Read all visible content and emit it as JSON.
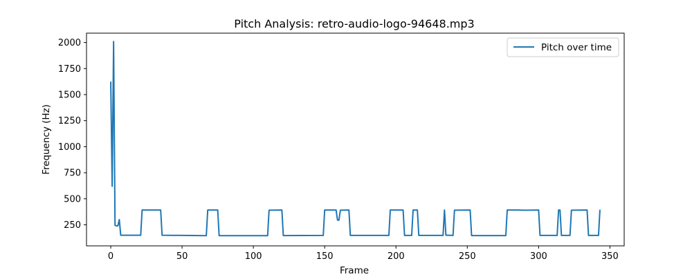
{
  "chart_data": {
    "type": "line",
    "title": "Pitch Analysis: retro-audio-logo-94648.mp3",
    "xlabel": "Frame",
    "ylabel": "Frequency (Hz)",
    "xlim": [
      -17,
      360
    ],
    "ylim": [
      48,
      2090
    ],
    "xticks": [
      0,
      50,
      100,
      150,
      200,
      250,
      300,
      350
    ],
    "yticks": [
      250,
      500,
      750,
      1000,
      1250,
      1500,
      1750,
      2000
    ],
    "xtick_labels": [
      "0",
      "50",
      "100",
      "150",
      "200",
      "250",
      "300",
      "350"
    ],
    "ytick_labels": [
      "250",
      "500",
      "750",
      "1000",
      "1250",
      "1500",
      "1750",
      "2000"
    ],
    "grid": false,
    "legend_position": "top-right",
    "series": [
      {
        "name": "Pitch over time",
        "color": "#1f77b4",
        "x": [
          0,
          1,
          2,
          3,
          4,
          5,
          6,
          7,
          21,
          22,
          35,
          36,
          67,
          68,
          75,
          76,
          110,
          111,
          120,
          121,
          149,
          150,
          158,
          159,
          160,
          161,
          167,
          168,
          195,
          196,
          205,
          206,
          211,
          212,
          215,
          216,
          233,
          234,
          235,
          236,
          240,
          241,
          252,
          253,
          277,
          278,
          285,
          290,
          300,
          301,
          313,
          314,
          315,
          316,
          322,
          323,
          334,
          335,
          342,
          343
        ],
        "values": [
          1625,
          620,
          2010,
          245,
          240,
          240,
          300,
          150,
          150,
          392,
          392,
          150,
          146,
          392,
          392,
          146,
          146,
          390,
          392,
          147,
          148,
          392,
          392,
          295,
          295,
          390,
          392,
          148,
          148,
          392,
          392,
          148,
          148,
          392,
          392,
          148,
          148,
          392,
          150,
          150,
          148,
          390,
          392,
          147,
          147,
          392,
          392,
          390,
          392,
          148,
          148,
          392,
          392,
          148,
          148,
          390,
          392,
          148,
          148,
          395
        ]
      }
    ]
  }
}
